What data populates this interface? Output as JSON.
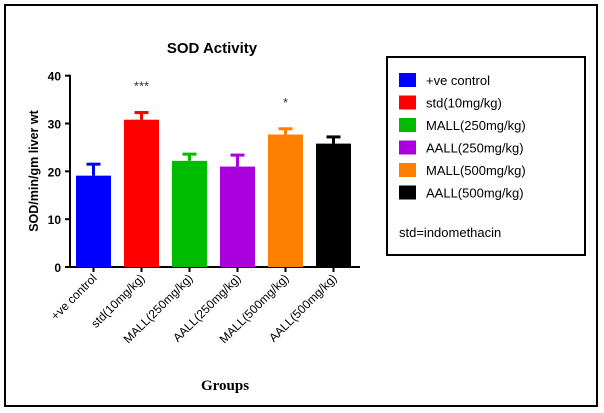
{
  "chart_data": {
    "type": "bar",
    "title": "SOD Activity",
    "xlabel": "Groups",
    "ylabel": "SOD/min/gm liver wt",
    "ylim": [
      0,
      40
    ],
    "yticks": [
      "0",
      "10",
      "20",
      "30",
      "40"
    ],
    "categories": [
      "+ve control",
      "std(10mg/kg)",
      "MALL(250mg/kg)",
      "AALL(250mg/kg)",
      "MALL(500mg/kg)",
      "AALL(500mg/kg)"
    ],
    "values": [
      19.1,
      30.8,
      22.2,
      21.0,
      27.7,
      25.8
    ],
    "error_upper": [
      21.5,
      32.3,
      23.6,
      23.4,
      28.9,
      27.2
    ],
    "annotations": [
      "",
      "***",
      "",
      "",
      "*",
      ""
    ],
    "colors": [
      "#0000ff",
      "#ff0000",
      "#00bb00",
      "#aa00dd",
      "#ff8000",
      "#000000"
    ],
    "legend": {
      "position": "right",
      "entries": [
        "+ve control",
        "std(10mg/kg)",
        "MALL(250mg/kg)",
        "AALL(250mg/kg)",
        "MALL(500mg/kg)",
        "AALL(500mg/kg)"
      ],
      "note": "std=indomethacin"
    },
    "grid": false
  }
}
